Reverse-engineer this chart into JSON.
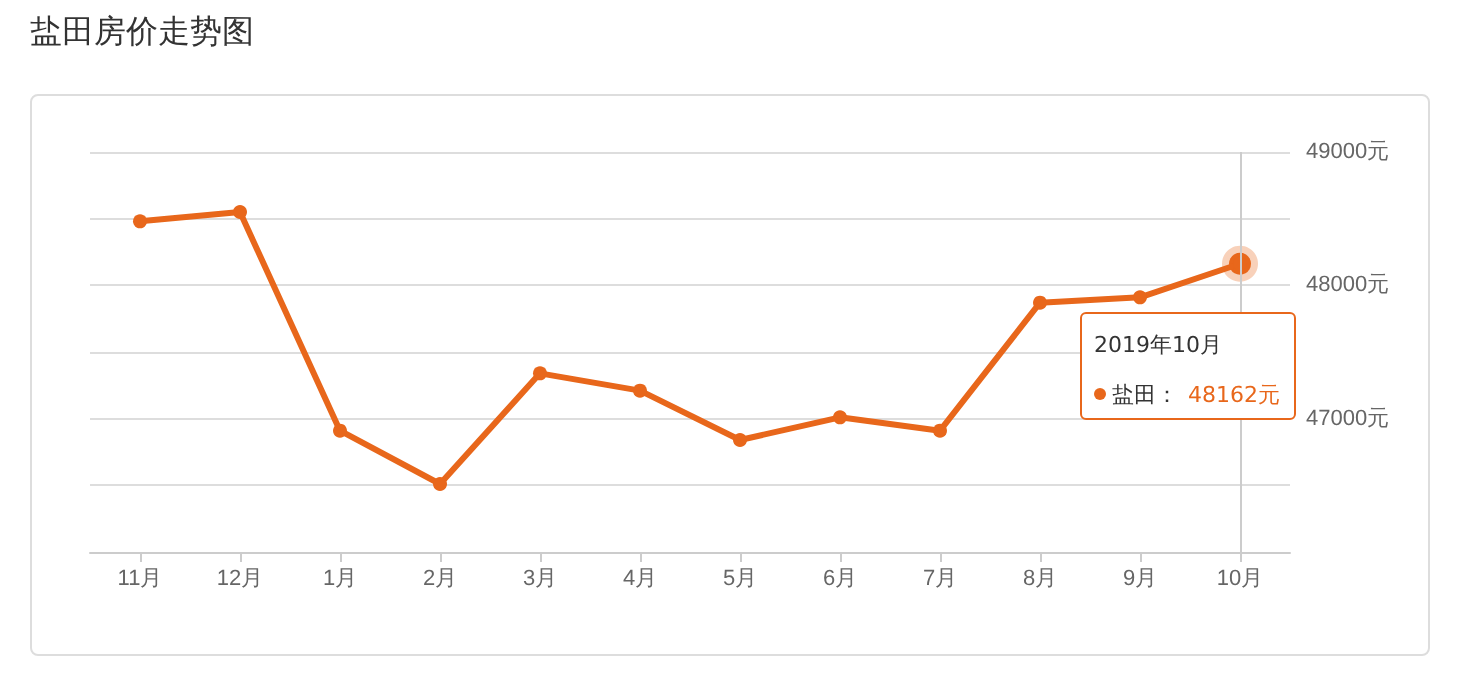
{
  "chart_data": {
    "type": "line",
    "title": "盐田房价走势图",
    "categories": [
      "11月",
      "12月",
      "1月",
      "2月",
      "3月",
      "4月",
      "5月",
      "6月",
      "7月",
      "8月",
      "9月",
      "10月"
    ],
    "series": [
      {
        "name": "盐田：",
        "color": "#e8671b",
        "values": [
          48480,
          48550,
          46910,
          46510,
          47340,
          47210,
          46840,
          47010,
          46910,
          47870,
          47910,
          48162
        ]
      }
    ],
    "ylim": [
      46000,
      49000
    ],
    "yticks": [
      {
        "value": 46000,
        "label": null
      },
      {
        "value": 47000,
        "label": "47000元"
      },
      {
        "value": 48000,
        "label": "48000元"
      },
      {
        "value": 49000,
        "label": "49000元"
      }
    ],
    "grid": "y",
    "marker": "circle",
    "line_style": "solid",
    "ref_lines": [
      {
        "axis": "x",
        "value": "10月",
        "color": "#cccccc"
      }
    ],
    "annotations": [
      "2019年10月",
      "48162元"
    ]
  }
}
